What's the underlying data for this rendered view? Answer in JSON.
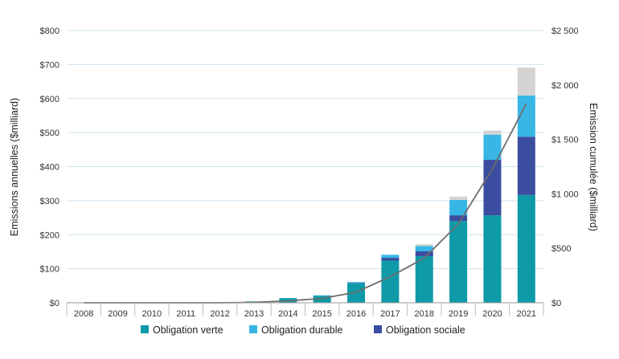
{
  "chart_data": {
    "type": "bar",
    "stacked": true,
    "categories": [
      "2008",
      "2009",
      "2010",
      "2011",
      "2012",
      "2013",
      "2014",
      "2015",
      "2016",
      "2017",
      "2018",
      "2019",
      "2020",
      "2021"
    ],
    "series": [
      {
        "name": "Obligation verte",
        "color": "#0e9aa7",
        "values": [
          0,
          0,
          0,
          0,
          0,
          4,
          13,
          20,
          57,
          124,
          137,
          240,
          257,
          317
        ]
      },
      {
        "name": "",
        "color": "#3a4da0",
        "values": [
          0,
          0,
          0,
          0,
          0,
          0,
          0,
          0,
          1,
          8,
          14,
          17,
          163,
          171
        ]
      },
      {
        "name": "Obligation durable",
        "color": "#38b6e6",
        "values": [
          0,
          0,
          0,
          0,
          0,
          0,
          1,
          2,
          3,
          9,
          16,
          45,
          74,
          121
        ]
      },
      {
        "name": "",
        "color": "#d3d3d3",
        "values": [
          0,
          0,
          0,
          0,
          0,
          0,
          0,
          0,
          0,
          0,
          5,
          10,
          12,
          82
        ]
      }
    ],
    "legend_entries": [
      {
        "name": "Obligation verte",
        "color": "#0e9aa7"
      },
      {
        "name": "Obligation durable",
        "color": "#38b6e6"
      },
      {
        "name": "Obligation sociale",
        "color": "#3a4da0"
      }
    ],
    "line": {
      "name": "",
      "axis": "right",
      "color": "#6d6d6d",
      "values": [
        0,
        0,
        0,
        0,
        0,
        4,
        18,
        40,
        98,
        239,
        411,
        723,
        1229,
        1830
      ]
    },
    "y_left": {
      "label": "Emissions annuelles ($milliard)",
      "ylim": [
        0,
        800
      ],
      "ticks": [
        0,
        100,
        200,
        300,
        400,
        500,
        600,
        700,
        800
      ],
      "tick_labels": [
        "$0",
        "$100",
        "$200",
        "$300",
        "$400",
        "$500",
        "$600",
        "$700",
        "$800"
      ]
    },
    "y_right": {
      "label": "Emission cumulée ($milliard)",
      "ylim": [
        0,
        2500
      ],
      "ticks": [
        0,
        500,
        1000,
        1500,
        2000,
        2500
      ],
      "tick_labels": [
        "$0",
        "$500",
        "$1 000",
        "$1 500",
        "$2 000",
        "$2 500"
      ]
    },
    "grid": true,
    "legend_position": "bottom"
  }
}
